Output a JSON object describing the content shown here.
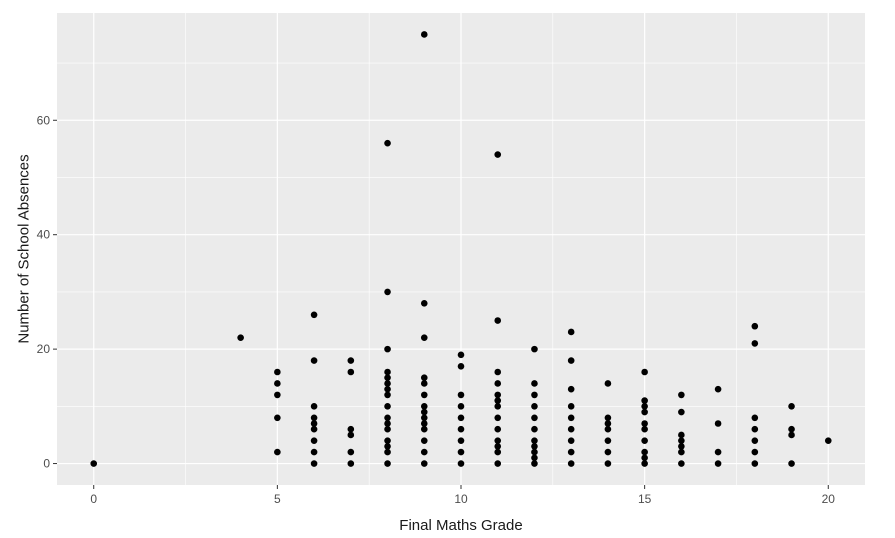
{
  "chart_data": {
    "type": "scatter",
    "title": "",
    "xlabel": "Final Maths Grade",
    "ylabel": "Number of School Absences",
    "xlim": [
      -1,
      21
    ],
    "ylim": [
      -3.75,
      78.75
    ],
    "x_ticks": [
      0,
      5,
      10,
      15,
      20
    ],
    "y_ticks": [
      0,
      20,
      40,
      60
    ],
    "x_tick_labels": [
      "0",
      "5",
      "10",
      "15",
      "20"
    ],
    "y_tick_labels": [
      "0",
      "20",
      "40",
      "60"
    ],
    "grid": true,
    "legend": "none",
    "colors": {
      "panel": "#ebebeb",
      "grid": "#ffffff",
      "point": "#000000",
      "tick": "#333333"
    },
    "points": [
      [
        0,
        0
      ],
      [
        4,
        22
      ],
      [
        5,
        16
      ],
      [
        5,
        14
      ],
      [
        5,
        12
      ],
      [
        5,
        8
      ],
      [
        5,
        2
      ],
      [
        6,
        26
      ],
      [
        6,
        18
      ],
      [
        6,
        10
      ],
      [
        6,
        8
      ],
      [
        6,
        7
      ],
      [
        6,
        6
      ],
      [
        6,
        4
      ],
      [
        6,
        2
      ],
      [
        6,
        0
      ],
      [
        7,
        18
      ],
      [
        7,
        16
      ],
      [
        7,
        6
      ],
      [
        7,
        5
      ],
      [
        7,
        2
      ],
      [
        7,
        0
      ],
      [
        8,
        56
      ],
      [
        8,
        30
      ],
      [
        8,
        20
      ],
      [
        8,
        16
      ],
      [
        8,
        15
      ],
      [
        8,
        14
      ],
      [
        8,
        13
      ],
      [
        8,
        12
      ],
      [
        8,
        10
      ],
      [
        8,
        8
      ],
      [
        8,
        7
      ],
      [
        8,
        6
      ],
      [
        8,
        4
      ],
      [
        8,
        3
      ],
      [
        8,
        2
      ],
      [
        8,
        0
      ],
      [
        9,
        75
      ],
      [
        9,
        28
      ],
      [
        9,
        22
      ],
      [
        9,
        15
      ],
      [
        9,
        14
      ],
      [
        9,
        12
      ],
      [
        9,
        10
      ],
      [
        9,
        9
      ],
      [
        9,
        8
      ],
      [
        9,
        7
      ],
      [
        9,
        6
      ],
      [
        9,
        4
      ],
      [
        9,
        2
      ],
      [
        9,
        0
      ],
      [
        10,
        19
      ],
      [
        10,
        17
      ],
      [
        10,
        12
      ],
      [
        10,
        10
      ],
      [
        10,
        8
      ],
      [
        10,
        6
      ],
      [
        10,
        4
      ],
      [
        10,
        2
      ],
      [
        10,
        0
      ],
      [
        11,
        54
      ],
      [
        11,
        25
      ],
      [
        11,
        16
      ],
      [
        11,
        14
      ],
      [
        11,
        12
      ],
      [
        11,
        11
      ],
      [
        11,
        10
      ],
      [
        11,
        8
      ],
      [
        11,
        6
      ],
      [
        11,
        4
      ],
      [
        11,
        3
      ],
      [
        11,
        2
      ],
      [
        11,
        0
      ],
      [
        12,
        20
      ],
      [
        12,
        14
      ],
      [
        12,
        12
      ],
      [
        12,
        10
      ],
      [
        12,
        8
      ],
      [
        12,
        6
      ],
      [
        12,
        4
      ],
      [
        12,
        3
      ],
      [
        12,
        2
      ],
      [
        12,
        1
      ],
      [
        12,
        0
      ],
      [
        13,
        23
      ],
      [
        13,
        18
      ],
      [
        13,
        13
      ],
      [
        13,
        10
      ],
      [
        13,
        8
      ],
      [
        13,
        6
      ],
      [
        13,
        4
      ],
      [
        13,
        2
      ],
      [
        13,
        0
      ],
      [
        14,
        14
      ],
      [
        14,
        8
      ],
      [
        14,
        7
      ],
      [
        14,
        6
      ],
      [
        14,
        4
      ],
      [
        14,
        2
      ],
      [
        14,
        0
      ],
      [
        15,
        16
      ],
      [
        15,
        11
      ],
      [
        15,
        10
      ],
      [
        15,
        9
      ],
      [
        15,
        7
      ],
      [
        15,
        6
      ],
      [
        15,
        4
      ],
      [
        15,
        2
      ],
      [
        15,
        1
      ],
      [
        15,
        0
      ],
      [
        16,
        12
      ],
      [
        16,
        9
      ],
      [
        16,
        5
      ],
      [
        16,
        4
      ],
      [
        16,
        3
      ],
      [
        16,
        2
      ],
      [
        16,
        0
      ],
      [
        17,
        13
      ],
      [
        17,
        7
      ],
      [
        17,
        2
      ],
      [
        17,
        0
      ],
      [
        18,
        24
      ],
      [
        18,
        21
      ],
      [
        18,
        8
      ],
      [
        18,
        6
      ],
      [
        18,
        4
      ],
      [
        18,
        2
      ],
      [
        18,
        0
      ],
      [
        19,
        10
      ],
      [
        19,
        6
      ],
      [
        19,
        5
      ],
      [
        19,
        0
      ],
      [
        20,
        4
      ]
    ]
  }
}
